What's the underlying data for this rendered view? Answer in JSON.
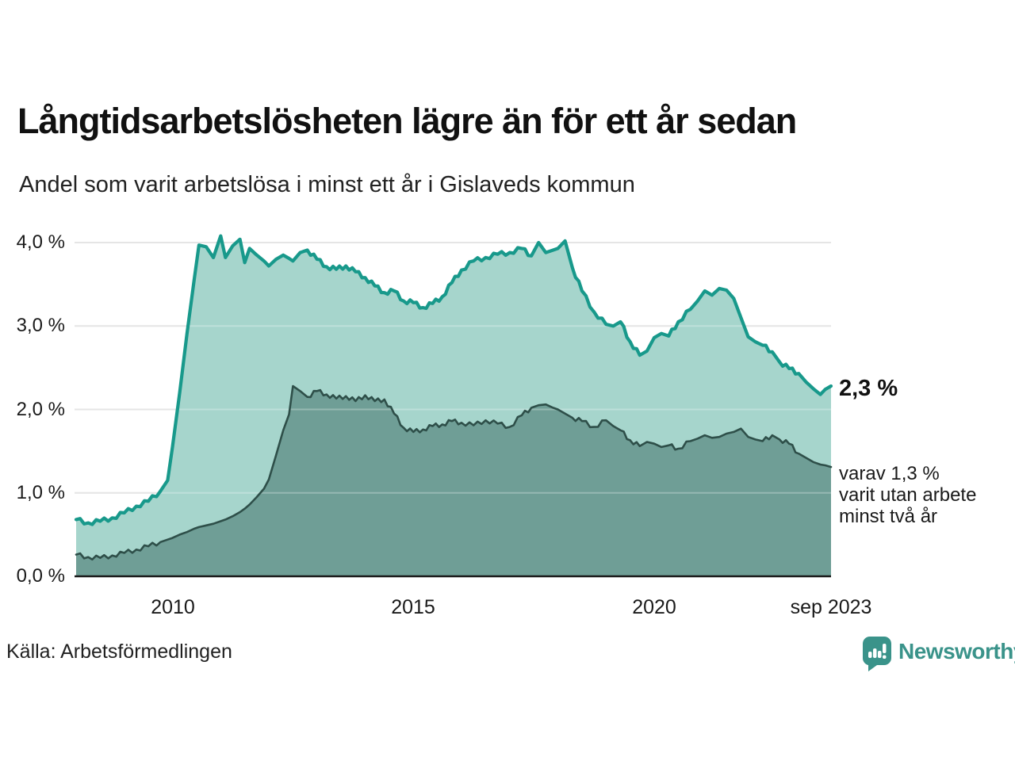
{
  "header": {
    "title": "Långtidsarbetslösheten lägre än för ett år sedan",
    "subtitle": "Andel som varit arbetslösa i minst ett år i Gislaveds kommun"
  },
  "annotations": {
    "latest_total": "2,3 %",
    "note_line1": "varav 1,3 %",
    "note_line2": "varit utan arbete",
    "note_line3": "minst två år"
  },
  "footer": {
    "source": "Källa: Arbetsförmedlingen",
    "brand": "Newsworthy"
  },
  "colors": {
    "accent_line": "#18998b",
    "accent_fill": "#a6d5cc",
    "dark_line": "#2e4f49",
    "dark_fill": "#6f9e96",
    "gridline": "#dcdcdc",
    "axis": "#1a1a1a",
    "brand_teal": "#3a938a"
  },
  "chart_data": {
    "type": "area",
    "title": "Långtidsarbetslösheten lägre än för ett år sedan",
    "subtitle": "Andel som varit arbetslösa i minst ett år i Gislaveds kommun",
    "source": "Källa: Arbetsförmedlingen",
    "ylabel": "",
    "xlabel": "",
    "ylim": [
      0,
      4.3
    ],
    "xlim": [
      2008.0,
      2023.67
    ],
    "grid": "horizontal",
    "legend": "annotations at line ends",
    "yticks": [
      {
        "value": 4.0,
        "label": "4,0 %"
      },
      {
        "value": 3.0,
        "label": "3,0 %"
      },
      {
        "value": 2.0,
        "label": "2,0 %"
      },
      {
        "value": 1.0,
        "label": "1,0 %"
      },
      {
        "value": 0.0,
        "label": "0,0 %"
      }
    ],
    "xticks": [
      {
        "value": 2010.0,
        "label": "2010"
      },
      {
        "value": 2015.0,
        "label": "2015"
      },
      {
        "value": 2020.0,
        "label": "2020"
      },
      {
        "value": 2023.67,
        "label": "sep 2023"
      }
    ],
    "x": [
      2008.0,
      2008.25,
      2008.5,
      2008.75,
      2009.0,
      2009.25,
      2009.5,
      2009.75,
      2009.9,
      2010.0,
      2010.15,
      2010.3,
      2010.45,
      2010.55,
      2010.7,
      2010.85,
      2011.0,
      2011.1,
      2011.25,
      2011.4,
      2011.5,
      2011.6,
      2011.75,
      2011.9,
      2012.0,
      2012.15,
      2012.3,
      2012.42,
      2012.5,
      2012.65,
      2012.8,
      2013.0,
      2013.2,
      2013.4,
      2013.6,
      2013.8,
      2014.0,
      2014.2,
      2014.4,
      2014.6,
      2014.8,
      2015.0,
      2015.2,
      2015.4,
      2015.6,
      2015.8,
      2016.0,
      2016.25,
      2016.5,
      2016.75,
      2017.0,
      2017.25,
      2017.45,
      2017.6,
      2017.75,
      2017.9,
      2018.0,
      2018.15,
      2018.3,
      2018.5,
      2018.75,
      2019.0,
      2019.15,
      2019.3,
      2019.5,
      2019.7,
      2019.85,
      2020.0,
      2020.15,
      2020.3,
      2020.5,
      2020.75,
      2020.9,
      2021.05,
      2021.2,
      2021.35,
      2021.5,
      2021.65,
      2021.8,
      2021.95,
      2022.1,
      2022.25,
      2022.45,
      2022.6,
      2022.8,
      2023.0,
      2023.15,
      2023.3,
      2023.45,
      2023.55,
      2023.67
    ],
    "series": [
      {
        "name": "Andel arbetslösa minst ett år",
        "end_label": "2,3 %",
        "values": [
          0.68,
          0.64,
          0.66,
          0.7,
          0.76,
          0.84,
          0.9,
          1.02,
          1.15,
          1.55,
          2.2,
          2.9,
          3.55,
          3.97,
          3.95,
          3.82,
          4.08,
          3.82,
          3.96,
          4.04,
          3.76,
          3.93,
          3.85,
          3.78,
          3.72,
          3.8,
          3.85,
          3.81,
          3.78,
          3.88,
          3.91,
          3.8,
          3.71,
          3.68,
          3.72,
          3.65,
          3.58,
          3.48,
          3.4,
          3.42,
          3.3,
          3.28,
          3.22,
          3.27,
          3.35,
          3.52,
          3.67,
          3.78,
          3.82,
          3.86,
          3.88,
          3.93,
          3.84,
          4.0,
          3.88,
          3.91,
          3.93,
          4.02,
          3.7,
          3.42,
          3.17,
          3.02,
          3.0,
          3.05,
          2.81,
          2.65,
          2.7,
          2.86,
          2.91,
          2.88,
          3.05,
          3.2,
          3.3,
          3.42,
          3.37,
          3.45,
          3.43,
          3.33,
          3.1,
          2.87,
          2.81,
          2.77,
          2.69,
          2.57,
          2.49,
          2.43,
          2.33,
          2.25,
          2.18,
          2.24,
          2.28
        ]
      },
      {
        "name": "varav arbetslösa minst två år",
        "end_label": "varav 1,3 % varit utan arbete minst två år",
        "values": [
          0.26,
          0.23,
          0.22,
          0.25,
          0.28,
          0.32,
          0.36,
          0.41,
          0.44,
          0.46,
          0.5,
          0.53,
          0.57,
          0.59,
          0.61,
          0.63,
          0.66,
          0.68,
          0.72,
          0.77,
          0.81,
          0.86,
          0.95,
          1.05,
          1.16,
          1.45,
          1.75,
          1.94,
          2.28,
          2.22,
          2.15,
          2.22,
          2.18,
          2.13,
          2.16,
          2.1,
          2.17,
          2.1,
          2.12,
          1.95,
          1.78,
          1.73,
          1.76,
          1.8,
          1.82,
          1.86,
          1.84,
          1.81,
          1.87,
          1.83,
          1.79,
          1.93,
          2.02,
          2.05,
          2.06,
          2.02,
          2.0,
          1.95,
          1.9,
          1.86,
          1.79,
          1.87,
          1.8,
          1.75,
          1.63,
          1.56,
          1.61,
          1.59,
          1.55,
          1.57,
          1.53,
          1.62,
          1.65,
          1.69,
          1.66,
          1.67,
          1.71,
          1.73,
          1.77,
          1.67,
          1.64,
          1.62,
          1.69,
          1.64,
          1.59,
          1.47,
          1.42,
          1.37,
          1.34,
          1.33,
          1.31
        ]
      }
    ]
  }
}
